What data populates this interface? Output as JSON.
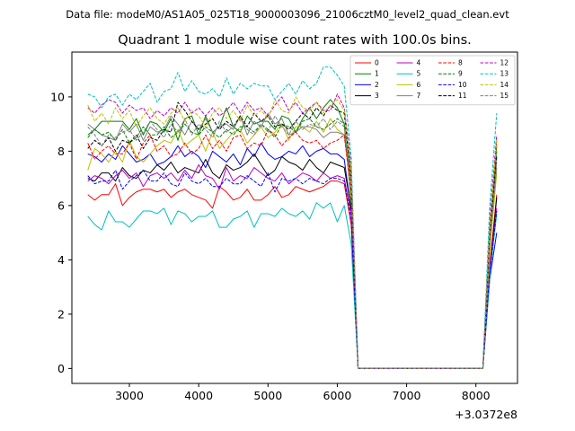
{
  "chart_data": {
    "type": "line",
    "suptitle": "Data file: modeM0/AS1A05_025T18_9000003096_21006cztM0_level2_quad_clean.evt",
    "title": "Quadrant 1 module wise count rates with 100.0s bins.",
    "xlabel": "",
    "ylabel": "",
    "x_offset_label": "+3.0372e8",
    "xlim": [
      2170,
      8600
    ],
    "ylim": [
      -0.55,
      11.65
    ],
    "xticks": [
      3000,
      4000,
      5000,
      6000,
      7000,
      8000
    ],
    "yticks": [
      0,
      2,
      4,
      6,
      8,
      10
    ],
    "xtick_labels": [
      "3000",
      "4000",
      "5000",
      "6000",
      "7000",
      "8000"
    ],
    "ytick_labels": [
      "0",
      "2",
      "4",
      "6",
      "8",
      "10"
    ],
    "x": [
      2400,
      2500,
      2600,
      2700,
      2800,
      2900,
      3000,
      3100,
      3200,
      3300,
      3400,
      3500,
      3600,
      3700,
      3800,
      3900,
      4000,
      4100,
      4200,
      4300,
      4400,
      4500,
      4600,
      4700,
      4800,
      4900,
      5000,
      5100,
      5200,
      5300,
      5400,
      5500,
      5600,
      5700,
      5800,
      5900,
      6000,
      6100,
      6200,
      6300,
      6400,
      6500,
      6600,
      6700,
      6800,
      6900,
      7000,
      7100,
      7200,
      7300,
      7400,
      7500,
      7600,
      7700,
      7800,
      7900,
      8000,
      8100,
      8200,
      8300
    ],
    "legend": {
      "location": "upper right",
      "columns": 4
    },
    "series": [
      {
        "name": "0",
        "color": "#ff0000",
        "dash": "solid",
        "values": [
          6.4,
          6.2,
          6.4,
          6.4,
          6.8,
          6.0,
          6.3,
          6.5,
          6.6,
          6.6,
          6.5,
          6.6,
          6.3,
          6.5,
          6.6,
          6.4,
          6.3,
          6.2,
          5.9,
          6.7,
          6.5,
          6.2,
          6.3,
          6.6,
          6.2,
          6.2,
          6.4,
          6.7,
          6.3,
          6.4,
          6.7,
          6.6,
          6.5,
          6.6,
          6.7,
          6.9,
          6.9,
          6.8,
          5.3,
          0.0,
          0.0,
          0.0,
          0.0,
          0.0,
          0.0,
          0.0,
          0.0,
          0.0,
          0.0,
          0.0,
          0.0,
          0.0,
          0.0,
          0.0,
          0.0,
          0.0,
          0.0,
          0.0,
          3.8,
          6.4
        ]
      },
      {
        "name": "1",
        "color": "#008000",
        "dash": "solid",
        "values": [
          8.6,
          8.8,
          9.1,
          9.1,
          9.1,
          9.1,
          8.8,
          9.2,
          8.6,
          9.1,
          9.0,
          8.7,
          9.2,
          8.4,
          9.2,
          9.3,
          8.6,
          9.3,
          8.7,
          8.9,
          9.6,
          8.9,
          8.7,
          9.3,
          9.0,
          9.1,
          9.1,
          8.8,
          9.3,
          9.2,
          8.7,
          9.2,
          9.6,
          9.2,
          9.6,
          9.9,
          9.6,
          9.0,
          6.1,
          0.0,
          0.0,
          0.0,
          0.0,
          0.0,
          0.0,
          0.0,
          0.0,
          0.0,
          0.0,
          0.0,
          0.0,
          0.0,
          0.0,
          0.0,
          0.0,
          0.0,
          0.0,
          0.0,
          4.9,
          8.2
        ]
      },
      {
        "name": "2",
        "color": "#0000ff",
        "dash": "solid",
        "values": [
          7.9,
          7.8,
          7.6,
          7.9,
          7.7,
          8.2,
          7.9,
          7.6,
          7.7,
          7.9,
          7.5,
          7.6,
          7.8,
          8.2,
          7.8,
          8.0,
          7.8,
          7.4,
          8.0,
          7.8,
          7.6,
          7.9,
          7.5,
          8.1,
          7.8,
          8.3,
          7.9,
          7.7,
          7.8,
          8.0,
          7.9,
          8.2,
          7.8,
          8.0,
          8.1,
          7.9,
          7.9,
          7.7,
          5.8,
          0.0,
          0.0,
          0.0,
          0.0,
          0.0,
          0.0,
          0.0,
          0.0,
          0.0,
          0.0,
          0.0,
          0.0,
          0.0,
          0.0,
          0.0,
          0.0,
          0.0,
          0.0,
          0.0,
          3.3,
          5.0
        ]
      },
      {
        "name": "3",
        "color": "#000000",
        "dash": "solid",
        "values": [
          7.0,
          6.9,
          7.2,
          7.2,
          6.9,
          7.4,
          7.1,
          7.0,
          7.3,
          7.2,
          7.5,
          7.3,
          7.6,
          7.2,
          7.4,
          7.3,
          7.2,
          7.7,
          7.2,
          7.0,
          7.5,
          7.3,
          7.4,
          7.6,
          7.9,
          7.5,
          7.1,
          7.3,
          7.8,
          7.6,
          7.5,
          7.3,
          7.7,
          7.4,
          7.2,
          7.6,
          7.5,
          7.4,
          5.9,
          0.0,
          0.0,
          0.0,
          0.0,
          0.0,
          0.0,
          0.0,
          0.0,
          0.0,
          0.0,
          0.0,
          0.0,
          0.0,
          0.0,
          0.0,
          0.0,
          0.0,
          0.0,
          0.0,
          3.5,
          6.3
        ]
      },
      {
        "name": "4",
        "color": "#bf00bf",
        "dash": "solid",
        "values": [
          6.9,
          7.1,
          7.0,
          6.8,
          7.1,
          7.3,
          7.0,
          7.2,
          6.7,
          7.1,
          7.2,
          7.0,
          7.2,
          6.9,
          7.3,
          7.0,
          7.5,
          7.1,
          7.0,
          6.6,
          7.4,
          6.9,
          7.1,
          7.0,
          7.4,
          7.2,
          7.0,
          6.9,
          7.2,
          6.8,
          7.0,
          7.2,
          7.1,
          6.9,
          7.2,
          7.0,
          7.1,
          7.0,
          5.7,
          0.0,
          0.0,
          0.0,
          0.0,
          0.0,
          0.0,
          0.0,
          0.0,
          0.0,
          0.0,
          0.0,
          0.0,
          0.0,
          0.0,
          0.0,
          0.0,
          0.0,
          0.0,
          0.0,
          3.6,
          5.9
        ]
      },
      {
        "name": "5",
        "color": "#00bfbf",
        "dash": "solid",
        "values": [
          5.6,
          5.3,
          5.1,
          5.8,
          5.4,
          5.4,
          5.2,
          5.5,
          5.8,
          5.8,
          5.7,
          5.9,
          5.3,
          5.8,
          5.7,
          5.4,
          5.6,
          5.6,
          5.8,
          5.2,
          5.2,
          5.5,
          5.6,
          5.8,
          5.2,
          5.7,
          5.7,
          5.6,
          5.9,
          5.7,
          5.6,
          5.8,
          5.5,
          6.1,
          5.9,
          6.1,
          5.4,
          6.0,
          4.6,
          0.0,
          0.0,
          0.0,
          0.0,
          0.0,
          0.0,
          0.0,
          0.0,
          0.0,
          0.0,
          0.0,
          0.0,
          0.0,
          0.0,
          0.0,
          0.0,
          0.0,
          0.0,
          0.0,
          3.4,
          5.7
        ]
      },
      {
        "name": "6",
        "color": "#bfbf00",
        "dash": "solid",
        "values": [
          7.3,
          8.1,
          7.9,
          7.6,
          8.0,
          7.6,
          8.4,
          7.8,
          7.6,
          7.9,
          8.2,
          8.4,
          8.3,
          8.8,
          8.2,
          8.4,
          8.6,
          8.0,
          8.7,
          8.1,
          8.4,
          8.7,
          8.8,
          8.3,
          8.6,
          8.9,
          8.5,
          8.7,
          9.0,
          8.4,
          8.9,
          8.9,
          8.7,
          9.1,
          8.7,
          9.2,
          8.8,
          8.6,
          6.4,
          0.0,
          0.0,
          0.0,
          0.0,
          0.0,
          0.0,
          0.0,
          0.0,
          0.0,
          0.0,
          0.0,
          0.0,
          0.0,
          0.0,
          0.0,
          0.0,
          0.0,
          0.0,
          0.0,
          4.3,
          7.2
        ]
      },
      {
        "name": "7",
        "color": "#808080",
        "dash": "solid",
        "values": [
          9.0,
          8.8,
          8.6,
          8.5,
          8.4,
          9.0,
          8.7,
          9.0,
          8.4,
          8.9,
          8.7,
          8.8,
          9.3,
          9.0,
          8.6,
          9.1,
          8.8,
          9.2,
          8.7,
          8.9,
          9.0,
          8.8,
          9.3,
          8.6,
          9.1,
          8.9,
          9.4,
          9.0,
          9.2,
          8.6,
          8.7,
          8.9,
          8.9,
          8.8,
          8.5,
          8.7,
          8.7,
          8.6,
          6.8,
          0.0,
          0.0,
          0.0,
          0.0,
          0.0,
          0.0,
          0.0,
          0.0,
          0.0,
          0.0,
          0.0,
          0.0,
          0.0,
          0.0,
          0.0,
          0.0,
          0.0,
          0.0,
          0.0,
          4.7,
          7.4
        ]
      },
      {
        "name": "8",
        "color": "#ff0000",
        "dash": "dashed",
        "values": [
          8.3,
          7.7,
          8.0,
          8.2,
          7.9,
          7.9,
          8.3,
          7.7,
          8.3,
          8.6,
          8.0,
          8.2,
          7.8,
          7.9,
          8.3,
          7.9,
          8.1,
          8.6,
          8.1,
          8.4,
          8.0,
          8.5,
          8.6,
          8.1,
          8.3,
          8.2,
          8.8,
          8.6,
          8.2,
          8.5,
          8.7,
          8.4,
          8.3,
          8.4,
          8.1,
          8.3,
          8.4,
          8.6,
          6.5,
          0.0,
          0.0,
          0.0,
          0.0,
          0.0,
          0.0,
          0.0,
          0.0,
          0.0,
          0.0,
          0.0,
          0.0,
          0.0,
          0.0,
          0.0,
          0.0,
          0.0,
          0.0,
          0.0,
          4.8,
          8.4
        ]
      },
      {
        "name": "9",
        "color": "#008000",
        "dash": "dashed",
        "values": [
          8.5,
          8.8,
          8.6,
          8.7,
          8.4,
          8.8,
          8.3,
          8.5,
          8.9,
          8.6,
          8.6,
          8.9,
          8.5,
          8.7,
          9.0,
          8.7,
          8.6,
          8.9,
          8.7,
          8.5,
          8.8,
          8.6,
          8.9,
          8.9,
          8.7,
          9.0,
          8.8,
          8.5,
          9.0,
          8.9,
          8.7,
          9.1,
          9.2,
          8.9,
          8.8,
          9.0,
          9.2,
          9.0,
          6.9,
          0.0,
          0.0,
          0.0,
          0.0,
          0.0,
          0.0,
          0.0,
          0.0,
          0.0,
          0.0,
          0.0,
          0.0,
          0.0,
          0.0,
          0.0,
          0.0,
          0.0,
          0.0,
          0.0,
          5.0,
          8.0
        ]
      },
      {
        "name": "10",
        "color": "#0000ff",
        "dash": "dashed",
        "values": [
          7.1,
          6.8,
          6.9,
          6.9,
          7.3,
          6.6,
          6.9,
          7.1,
          7.3,
          6.9,
          6.9,
          7.2,
          6.8,
          6.7,
          7.2,
          6.9,
          6.8,
          7.0,
          6.7,
          6.7,
          7.0,
          6.8,
          6.8,
          7.1,
          6.9,
          6.7,
          7.2,
          6.5,
          7.0,
          6.9,
          7.0,
          6.8,
          7.0,
          6.9,
          6.8,
          7.0,
          7.0,
          6.9,
          5.5,
          0.0,
          0.0,
          0.0,
          0.0,
          0.0,
          0.0,
          0.0,
          0.0,
          0.0,
          0.0,
          0.0,
          0.0,
          0.0,
          0.0,
          0.0,
          0.0,
          0.0,
          0.0,
          0.0,
          3.6,
          5.8
        ]
      },
      {
        "name": "11",
        "color": "#000000",
        "dash": "dashed",
        "values": [
          8.1,
          8.4,
          8.2,
          8.5,
          8.0,
          8.4,
          8.3,
          8.6,
          8.1,
          8.5,
          8.4,
          8.8,
          8.7,
          9.8,
          9.5,
          9.1,
          8.8,
          9.0,
          9.2,
          8.8,
          9.1,
          8.9,
          9.3,
          8.9,
          9.4,
          9.1,
          9.3,
          8.9,
          9.0,
          8.8,
          9.1,
          9.4,
          9.2,
          9.6,
          9.3,
          9.7,
          9.5,
          9.4,
          7.0,
          0.0,
          0.0,
          0.0,
          0.0,
          0.0,
          0.0,
          0.0,
          0.0,
          0.0,
          0.0,
          0.0,
          0.0,
          0.0,
          0.0,
          0.0,
          0.0,
          0.0,
          0.0,
          0.0,
          4.9,
          7.8
        ]
      },
      {
        "name": "12",
        "color": "#bf00bf",
        "dash": "dashed",
        "values": [
          9.6,
          9.4,
          9.7,
          9.9,
          9.8,
          9.4,
          9.7,
          9.5,
          9.6,
          9.2,
          9.5,
          9.3,
          9.6,
          9.4,
          9.8,
          9.4,
          9.6,
          9.3,
          9.6,
          9.3,
          9.5,
          9.8,
          9.4,
          9.8,
          9.5,
          9.6,
          9.3,
          9.7,
          10.0,
          9.5,
          9.8,
          9.4,
          9.6,
          9.8,
          9.5,
          9.5,
          10.1,
          9.6,
          7.5,
          0.0,
          0.0,
          0.0,
          0.0,
          0.0,
          0.0,
          0.0,
          0.0,
          0.0,
          0.0,
          0.0,
          0.0,
          0.0,
          0.0,
          0.0,
          0.0,
          0.0,
          0.0,
          0.0,
          5.5,
          8.6
        ]
      },
      {
        "name": "13",
        "color": "#00bfbf",
        "dash": "dashed",
        "values": [
          10.1,
          10.0,
          9.6,
          10.0,
          10.1,
          9.7,
          10.1,
          9.9,
          10.2,
          10.5,
          9.8,
          10.2,
          10.3,
          10.9,
          10.2,
          10.6,
          10.2,
          10.1,
          10.3,
          10.0,
          10.7,
          10.1,
          10.5,
          10.3,
          10.5,
          10.4,
          10.4,
          9.9,
          10.2,
          10.5,
          10.1,
          10.6,
          10.3,
          10.5,
          11.1,
          11.1,
          10.8,
          10.4,
          7.8,
          0.0,
          0.0,
          0.0,
          0.0,
          0.0,
          0.0,
          0.0,
          0.0,
          0.0,
          0.0,
          0.0,
          0.0,
          0.0,
          0.0,
          0.0,
          0.0,
          0.0,
          0.0,
          0.0,
          6.0,
          9.4
        ]
      },
      {
        "name": "14",
        "color": "#bfbf00",
        "dash": "dashed",
        "values": [
          9.7,
          9.1,
          9.4,
          9.0,
          9.6,
          9.2,
          9.5,
          8.9,
          9.3,
          9.6,
          9.2,
          9.0,
          9.4,
          9.6,
          9.1,
          9.5,
          9.3,
          8.9,
          9.4,
          9.6,
          9.2,
          9.5,
          9.1,
          9.7,
          9.3,
          9.5,
          9.2,
          9.9,
          9.5,
          9.4,
          10.0,
          9.6,
          9.5,
          9.8,
          9.4,
          9.7,
          9.9,
          9.5,
          7.3,
          0.0,
          0.0,
          0.0,
          0.0,
          0.0,
          0.0,
          0.0,
          0.0,
          0.0,
          0.0,
          0.0,
          0.0,
          0.0,
          0.0,
          0.0,
          0.0,
          0.0,
          0.0,
          0.0,
          5.2,
          8.4
        ]
      },
      {
        "name": "15",
        "color": "#808080",
        "dash": "dashed",
        "values": [
          8.9,
          8.6,
          8.2,
          8.6,
          8.5,
          8.7,
          8.8,
          8.4,
          8.7,
          9.1,
          8.8,
          8.5,
          9.0,
          8.7,
          9.2,
          8.6,
          9.0,
          8.8,
          8.5,
          9.1,
          8.7,
          8.9,
          9.2,
          8.8,
          8.6,
          9.0,
          8.7,
          9.3,
          8.9,
          8.6,
          9.1,
          8.8,
          9.0,
          8.9,
          9.2,
          8.8,
          9.1,
          8.9,
          6.8,
          0.0,
          0.0,
          0.0,
          0.0,
          0.0,
          0.0,
          0.0,
          0.0,
          0.0,
          0.0,
          0.0,
          0.0,
          0.0,
          0.0,
          0.0,
          0.0,
          0.0,
          0.0,
          0.0,
          4.8,
          7.6
        ]
      }
    ]
  }
}
